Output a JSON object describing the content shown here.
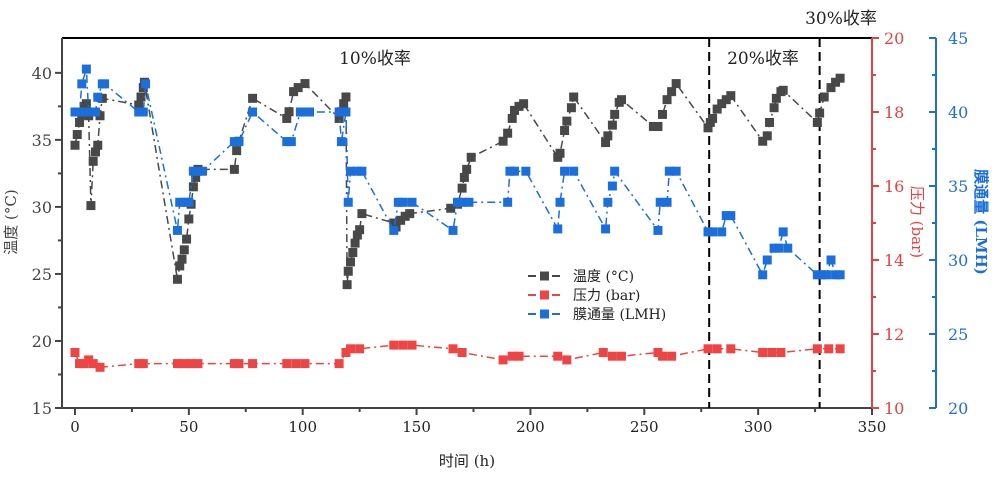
{
  "chart_data": {
    "type": "line",
    "xlabel": "时间 (h)",
    "xlim": [
      -5.7,
      350
    ],
    "xticks": [
      0,
      50,
      100,
      150,
      200,
      250,
      300,
      350
    ],
    "axes": {
      "left": {
        "label": "温度 (°C)",
        "range": [
          15,
          42.6
        ],
        "ticks": [
          15,
          20,
          25,
          30,
          35,
          40
        ],
        "color": "#444444"
      },
      "right1": {
        "label": "压力 (bar)",
        "range": [
          10,
          20
        ],
        "ticks": [
          10,
          12,
          14,
          16,
          18,
          20
        ],
        "color": "#e84040"
      },
      "right2": {
        "label": "膜通量 (LMH)",
        "range": [
          20,
          45
        ],
        "ticks": [
          20,
          25,
          30,
          35,
          40,
          45
        ],
        "color": "#1a6fdc"
      }
    },
    "annotations": [
      {
        "text": "10%收率",
        "x": 130
      },
      {
        "text": "20%收率",
        "x": 303
      },
      {
        "text": "30%收率",
        "x": 335
      }
    ],
    "vlines": [
      278.5,
      327
    ],
    "legend_position": "center-right",
    "series": [
      {
        "name": "温度 (°C)",
        "axis": "left",
        "color": "#484848",
        "x": [
          0,
          1,
          2,
          3,
          4,
          5,
          6,
          7,
          8,
          9,
          10,
          11,
          12,
          28,
          29,
          30,
          30.5,
          45,
          46,
          47,
          48,
          49,
          50,
          51,
          52,
          53,
          54,
          70,
          71,
          72,
          78,
          93,
          94,
          96,
          98,
          101,
          116,
          117,
          118,
          119,
          119.5,
          120,
          121,
          122,
          123,
          124,
          125,
          126,
          140,
          141,
          143,
          145,
          147,
          165,
          168,
          170,
          171,
          172,
          174,
          188,
          190,
          192,
          193,
          195,
          197,
          212,
          213,
          215,
          216,
          218,
          219,
          233,
          234,
          236,
          237,
          239,
          240,
          254,
          256,
          258,
          260,
          262,
          264,
          278,
          279,
          280,
          282,
          284,
          286,
          288,
          302,
          304,
          305,
          307,
          308,
          310,
          311,
          326,
          327,
          329,
          332,
          334,
          336
        ],
        "y": [
          34.6,
          35.4,
          36.3,
          36.9,
          37.5,
          37.7,
          36.8,
          30.1,
          33.4,
          34.1,
          34.6,
          36.8,
          38.1,
          37.6,
          38.2,
          38.9,
          39.3,
          24.6,
          25.6,
          26.1,
          26.8,
          27.6,
          29.1,
          30.2,
          31.5,
          32.2,
          32.8,
          32.8,
          34.2,
          34.9,
          38.1,
          36.6,
          37.1,
          38.6,
          38.9,
          39.2,
          36.6,
          37.1,
          37.7,
          38.2,
          24.2,
          25.2,
          25.9,
          26.6,
          27.3,
          27.9,
          28.3,
          29.5,
          28.8,
          28.5,
          29.0,
          29.3,
          29.5,
          29.9,
          30.2,
          31.4,
          32.2,
          32.8,
          33.7,
          34.9,
          35.5,
          36.6,
          37.2,
          37.5,
          37.7,
          33.7,
          34.0,
          35.7,
          36.4,
          37.4,
          38.2,
          34.8,
          35.3,
          36.1,
          36.9,
          37.8,
          38.0,
          36.0,
          36.0,
          36.9,
          38.0,
          38.6,
          39.2,
          35.9,
          36.3,
          36.6,
          37.3,
          37.7,
          38.0,
          38.3,
          34.9,
          35.3,
          36.3,
          37.4,
          38.1,
          38.6,
          38.7,
          36.3,
          37.0,
          38.2,
          38.9,
          39.3,
          39.6
        ]
      },
      {
        "name": "压力 (bar)",
        "axis": "right1",
        "color": "#ef4444",
        "x": [
          0,
          2,
          4,
          6,
          8,
          11,
          28,
          30,
          45,
          48,
          51,
          54,
          70,
          72,
          78,
          93,
          97,
          101,
          116,
          119,
          121,
          125,
          140,
          144,
          148,
          166,
          170,
          188,
          192,
          195,
          212,
          216,
          232,
          236,
          240,
          256,
          258,
          262,
          278,
          282,
          288,
          302,
          306,
          310,
          326,
          331,
          336
        ],
        "y": [
          11.5,
          11.2,
          11.2,
          11.3,
          11.2,
          11.1,
          11.2,
          11.2,
          11.2,
          11.2,
          11.2,
          11.2,
          11.2,
          11.2,
          11.2,
          11.2,
          11.2,
          11.2,
          11.2,
          11.5,
          11.6,
          11.6,
          11.7,
          11.7,
          11.7,
          11.6,
          11.5,
          11.3,
          11.4,
          11.4,
          11.4,
          11.3,
          11.5,
          11.4,
          11.4,
          11.5,
          11.4,
          11.4,
          11.6,
          11.6,
          11.6,
          11.5,
          11.5,
          11.5,
          11.6,
          11.6,
          11.6
        ]
      },
      {
        "name": "膜通量 (LMH)",
        "axis": "right2",
        "color": "#1a6fdc",
        "x": [
          0,
          2,
          3,
          5,
          6,
          7,
          9,
          10,
          12,
          13,
          28,
          30,
          31,
          45,
          46,
          48,
          50,
          52,
          54,
          56,
          70,
          72,
          78,
          93,
          95,
          99,
          101,
          103,
          116,
          117,
          119,
          120,
          121,
          124,
          126,
          140,
          142,
          144,
          148,
          166,
          168,
          170,
          173,
          190,
          191,
          193,
          198,
          212,
          213,
          215,
          219,
          233,
          234,
          236,
          237,
          256,
          257,
          260,
          261,
          264,
          278,
          280,
          284,
          286,
          288,
          302,
          304,
          307,
          309,
          311,
          313,
          326,
          328,
          330,
          332,
          334,
          336
        ],
        "y": [
          40,
          40,
          41.9,
          42.9,
          40,
          40,
          40,
          41,
          41.9,
          41.9,
          40,
          40,
          41.9,
          32,
          33.9,
          33.9,
          33.9,
          36,
          36,
          36,
          38,
          38,
          40,
          38,
          38,
          40,
          40,
          40,
          40,
          38,
          40,
          33.9,
          36,
          36,
          36,
          32,
          33.9,
          33.9,
          33.9,
          32,
          33.9,
          33.9,
          33.9,
          33.9,
          36,
          36,
          36,
          32.1,
          33.9,
          36,
          36,
          32.1,
          33.9,
          35,
          36,
          32,
          33.9,
          33.9,
          36,
          36,
          31.9,
          31.9,
          31.9,
          33,
          33,
          29,
          30,
          30.8,
          30.8,
          31.9,
          30.8,
          29,
          29,
          29,
          30,
          29,
          29
        ]
      }
    ]
  }
}
